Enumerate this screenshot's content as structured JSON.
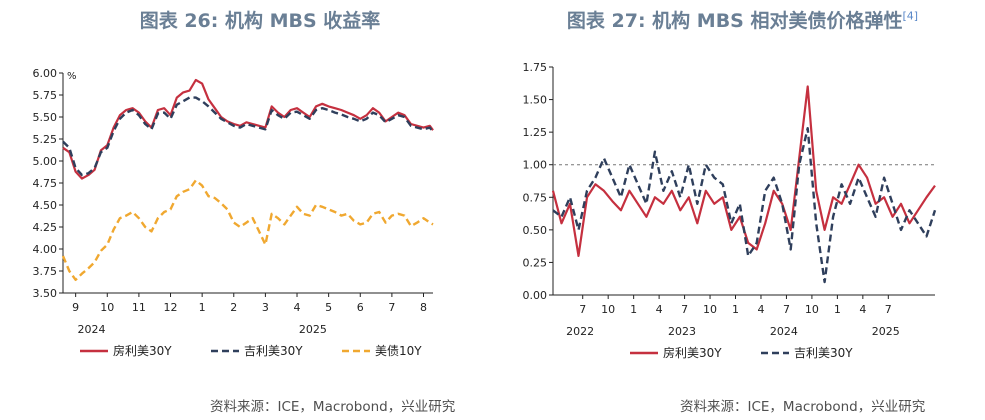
{
  "charts": {
    "left": {
      "title": "图表 26: 机构 MBS 收益率",
      "source": "资料来源：ICE，Macrobond，兴业研究"
    },
    "right": {
      "title": "图表 27: 机构 MBS 相对美债价格弹性",
      "title_sup": "[4]",
      "source": "资料来源：ICE，Macrobond，兴业研究"
    }
  },
  "chart_data": [
    {
      "type": "line",
      "title": "图表 26: 机构 MBS 收益率",
      "ylabel": "%",
      "ylim": [
        3.5,
        6.0
      ],
      "yticks": [
        "3.50",
        "3.75",
        "4.00",
        "4.25",
        "4.50",
        "4.75",
        "5.00",
        "5.25",
        "5.50",
        "5.75",
        "6.00"
      ],
      "ytick_values": [
        3.5,
        3.75,
        4.0,
        4.25,
        4.5,
        4.75,
        5.0,
        5.25,
        5.5,
        5.75,
        6.0
      ],
      "xlim": [
        8.6,
        20.3
      ],
      "xticks": [
        {
          "label": "9",
          "x": 9
        },
        {
          "label": "10",
          "x": 10
        },
        {
          "label": "11",
          "x": 11
        },
        {
          "label": "12",
          "x": 12
        },
        {
          "label": "1",
          "x": 13
        },
        {
          "label": "2",
          "x": 14
        },
        {
          "label": "3",
          "x": 15
        },
        {
          "label": "4",
          "x": 16
        },
        {
          "label": "5",
          "x": 17
        },
        {
          "label": "6",
          "x": 18
        },
        {
          "label": "7",
          "x": 19
        },
        {
          "label": "8",
          "x": 20
        }
      ],
      "year_labels": [
        {
          "label": "2024",
          "x": 9.5
        },
        {
          "label": "2025",
          "x": 16.5
        }
      ],
      "grid": false,
      "legend": "bottom",
      "series": [
        {
          "name": "房利美30Y",
          "style": "solid",
          "color": "#c5303f",
          "x": [
            8.6,
            8.8,
            9.0,
            9.2,
            9.4,
            9.6,
            9.8,
            10.0,
            10.2,
            10.4,
            10.6,
            10.8,
            11.0,
            11.2,
            11.4,
            11.6,
            11.8,
            12.0,
            12.2,
            12.4,
            12.6,
            12.8,
            13.0,
            13.2,
            13.4,
            13.6,
            13.8,
            14.0,
            14.2,
            14.4,
            14.6,
            14.8,
            15.0,
            15.2,
            15.4,
            15.6,
            15.8,
            16.0,
            16.2,
            16.4,
            16.6,
            16.8,
            17.0,
            17.2,
            17.4,
            17.6,
            17.8,
            18.0,
            18.2,
            18.4,
            18.6,
            18.8,
            19.0,
            19.2,
            19.4,
            19.6,
            19.8,
            20.0,
            20.2,
            20.3
          ],
          "values": [
            5.15,
            5.1,
            4.88,
            4.8,
            4.84,
            4.9,
            5.12,
            5.18,
            5.38,
            5.52,
            5.58,
            5.6,
            5.55,
            5.45,
            5.38,
            5.58,
            5.6,
            5.52,
            5.72,
            5.78,
            5.8,
            5.92,
            5.88,
            5.7,
            5.6,
            5.5,
            5.45,
            5.42,
            5.4,
            5.44,
            5.42,
            5.4,
            5.38,
            5.62,
            5.55,
            5.5,
            5.58,
            5.6,
            5.55,
            5.5,
            5.62,
            5.65,
            5.62,
            5.6,
            5.58,
            5.55,
            5.52,
            5.48,
            5.52,
            5.6,
            5.55,
            5.45,
            5.5,
            5.55,
            5.52,
            5.42,
            5.4,
            5.38,
            5.4,
            5.35
          ]
        },
        {
          "name": "吉利美30Y",
          "style": "dashed",
          "color": "#2f3f5c",
          "x": [
            8.6,
            8.8,
            9.0,
            9.2,
            9.4,
            9.6,
            9.8,
            10.0,
            10.2,
            10.4,
            10.6,
            10.8,
            11.0,
            11.2,
            11.4,
            11.6,
            11.8,
            12.0,
            12.2,
            12.4,
            12.6,
            12.8,
            13.0,
            13.2,
            13.4,
            13.6,
            13.8,
            14.0,
            14.2,
            14.4,
            14.6,
            14.8,
            15.0,
            15.2,
            15.4,
            15.6,
            15.8,
            16.0,
            16.2,
            16.4,
            16.6,
            16.8,
            17.0,
            17.2,
            17.4,
            17.6,
            17.8,
            18.0,
            18.2,
            18.4,
            18.6,
            18.8,
            19.0,
            19.2,
            19.4,
            19.6,
            19.8,
            20.0,
            20.2,
            20.3
          ],
          "values": [
            5.22,
            5.15,
            4.92,
            4.84,
            4.86,
            4.92,
            5.1,
            5.15,
            5.34,
            5.48,
            5.55,
            5.58,
            5.52,
            5.42,
            5.36,
            5.54,
            5.55,
            5.48,
            5.64,
            5.68,
            5.72,
            5.72,
            5.68,
            5.62,
            5.55,
            5.48,
            5.44,
            5.4,
            5.38,
            5.42,
            5.4,
            5.38,
            5.36,
            5.58,
            5.52,
            5.48,
            5.55,
            5.56,
            5.52,
            5.48,
            5.58,
            5.6,
            5.58,
            5.55,
            5.53,
            5.5,
            5.48,
            5.45,
            5.48,
            5.55,
            5.52,
            5.44,
            5.48,
            5.52,
            5.5,
            5.4,
            5.38,
            5.36,
            5.38,
            5.33
          ]
        },
        {
          "name": "美债10Y",
          "style": "dashed",
          "color": "#f0a830",
          "x": [
            8.6,
            8.8,
            9.0,
            9.2,
            9.4,
            9.6,
            9.8,
            10.0,
            10.2,
            10.4,
            10.6,
            10.8,
            11.0,
            11.2,
            11.4,
            11.6,
            11.8,
            12.0,
            12.2,
            12.4,
            12.6,
            12.8,
            13.0,
            13.2,
            13.4,
            13.6,
            13.8,
            14.0,
            14.2,
            14.4,
            14.6,
            14.8,
            15.0,
            15.2,
            15.4,
            15.6,
            15.8,
            16.0,
            16.2,
            16.4,
            16.6,
            16.8,
            17.0,
            17.2,
            17.4,
            17.6,
            17.8,
            18.0,
            18.2,
            18.4,
            18.6,
            18.8,
            19.0,
            19.2,
            19.4,
            19.6,
            19.8,
            20.0,
            20.2,
            20.3
          ],
          "values": [
            3.92,
            3.75,
            3.65,
            3.72,
            3.78,
            3.85,
            3.98,
            4.05,
            4.22,
            4.35,
            4.38,
            4.42,
            4.35,
            4.25,
            4.2,
            4.35,
            4.42,
            4.45,
            4.6,
            4.65,
            4.68,
            4.78,
            4.72,
            4.6,
            4.58,
            4.52,
            4.45,
            4.3,
            4.25,
            4.3,
            4.35,
            4.2,
            4.05,
            4.4,
            4.35,
            4.28,
            4.38,
            4.48,
            4.4,
            4.38,
            4.5,
            4.48,
            4.45,
            4.42,
            4.38,
            4.4,
            4.32,
            4.28,
            4.3,
            4.4,
            4.42,
            4.3,
            4.38,
            4.4,
            4.38,
            4.26,
            4.3,
            4.35,
            4.3,
            4.28
          ]
        }
      ]
    },
    {
      "type": "line",
      "title": "图表 27: 机构 MBS 相对美债价格弹性",
      "ylim": [
        0.0,
        1.75
      ],
      "yticks": [
        "0.00",
        "0.25",
        "0.50",
        "0.75",
        "1.00",
        "1.25",
        "1.50",
        "1.75"
      ],
      "ytick_values": [
        0.0,
        0.25,
        0.5,
        0.75,
        1.0,
        1.25,
        1.5,
        1.75
      ],
      "reference_line": 1.0,
      "xlim": [
        0,
        45
      ],
      "xticks": [
        {
          "label": "7",
          "x": 3.5
        },
        {
          "label": "10",
          "x": 6.5
        },
        {
          "label": "1",
          "x": 9.5
        },
        {
          "label": "4",
          "x": 12.5
        },
        {
          "label": "7",
          "x": 15.5
        },
        {
          "label": "10",
          "x": 18.5
        },
        {
          "label": "1",
          "x": 21.5
        },
        {
          "label": "4",
          "x": 24.5
        },
        {
          "label": "7",
          "x": 27.5
        },
        {
          "label": "10",
          "x": 30.5
        },
        {
          "label": "1",
          "x": 33.5
        },
        {
          "label": "4",
          "x": 36.5
        },
        {
          "label": "7",
          "x": 39.5
        }
      ],
      "year_labels": [
        {
          "label": "2022",
          "x": 3.2
        },
        {
          "label": "2023",
          "x": 15.2
        },
        {
          "label": "2024",
          "x": 27.2
        },
        {
          "label": "2025",
          "x": 39.2
        }
      ],
      "grid": false,
      "legend": "bottom",
      "series": [
        {
          "name": "房利美30Y",
          "style": "solid",
          "color": "#c5303f",
          "x": [
            0,
            1,
            2,
            3,
            4,
            5,
            6,
            7,
            8,
            9,
            10,
            11,
            12,
            13,
            14,
            15,
            16,
            17,
            18,
            19,
            20,
            21,
            22,
            23,
            24,
            25,
            26,
            27,
            28,
            29,
            30,
            31,
            32,
            33,
            34,
            35,
            36,
            37,
            38,
            39,
            40,
            41,
            42,
            43,
            44,
            45
          ],
          "values": [
            0.8,
            0.55,
            0.7,
            0.3,
            0.75,
            0.85,
            0.8,
            0.72,
            0.65,
            0.8,
            0.7,
            0.6,
            0.75,
            0.7,
            0.8,
            0.65,
            0.75,
            0.55,
            0.8,
            0.7,
            0.75,
            0.5,
            0.6,
            0.4,
            0.35,
            0.55,
            0.8,
            0.7,
            0.5,
            1.05,
            1.6,
            0.8,
            0.5,
            0.75,
            0.7,
            0.85,
            1.0,
            0.9,
            0.7,
            0.75,
            0.6,
            0.7,
            0.55,
            0.65,
            0.75,
            0.84
          ]
        },
        {
          "name": "吉利美30Y",
          "style": "dashed",
          "color": "#2f3f5c",
          "x": [
            0,
            1,
            2,
            3,
            4,
            5,
            6,
            7,
            8,
            9,
            10,
            11,
            12,
            13,
            14,
            15,
            16,
            17,
            18,
            19,
            20,
            21,
            22,
            23,
            24,
            25,
            26,
            27,
            28,
            29,
            30,
            31,
            32,
            33,
            34,
            35,
            36,
            37,
            38,
            39,
            40,
            41,
            42,
            43,
            44,
            45
          ],
          "values": [
            0.65,
            0.6,
            0.75,
            0.5,
            0.8,
            0.9,
            1.05,
            0.9,
            0.75,
            1.0,
            0.85,
            0.7,
            1.1,
            0.8,
            0.95,
            0.75,
            1.0,
            0.7,
            1.0,
            0.9,
            0.85,
            0.55,
            0.7,
            0.3,
            0.4,
            0.8,
            0.9,
            0.7,
            0.35,
            1.0,
            1.28,
            0.55,
            0.1,
            0.6,
            0.85,
            0.7,
            0.9,
            0.75,
            0.6,
            0.9,
            0.7,
            0.5,
            0.65,
            0.55,
            0.45,
            0.65
          ]
        }
      ]
    }
  ]
}
